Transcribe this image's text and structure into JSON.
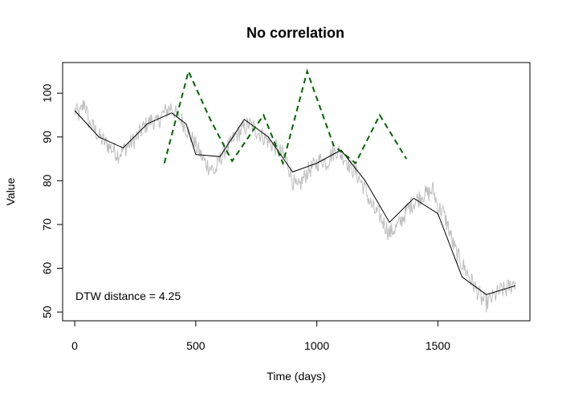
{
  "chart_data": {
    "type": "line",
    "title": "No correlation",
    "xlabel": "Time (days)",
    "ylabel": "Value",
    "xlim": [
      -50,
      1880
    ],
    "ylim": [
      48,
      107
    ],
    "xticks": [
      0,
      500,
      1000,
      1500
    ],
    "yticks": [
      50,
      60,
      70,
      80,
      90,
      100
    ],
    "grid": false,
    "annotation": "DTW distance = 4.25",
    "series": [
      {
        "style": "noisy",
        "color": "#bebebe",
        "x": [
          0,
          20,
          40,
          60,
          80,
          100,
          120,
          140,
          160,
          180,
          200,
          220,
          240,
          260,
          280,
          300,
          320,
          340,
          360,
          380,
          400,
          420,
          440,
          460,
          480,
          500,
          520,
          540,
          560,
          580,
          600,
          620,
          640,
          660,
          680,
          700,
          720,
          740,
          760,
          780,
          800,
          820,
          840,
          860,
          880,
          900,
          920,
          940,
          960,
          980,
          1000,
          1020,
          1040,
          1060,
          1080,
          1100,
          1120,
          1140,
          1160,
          1180,
          1200,
          1220,
          1240,
          1260,
          1280,
          1300,
          1320,
          1340,
          1360,
          1380,
          1400,
          1420,
          1440,
          1460,
          1480,
          1500,
          1520,
          1540,
          1560,
          1580,
          1600,
          1620,
          1640,
          1660,
          1680,
          1700,
          1720,
          1740,
          1760,
          1780,
          1800,
          1820
        ],
        "y": [
          96,
          95,
          98,
          93,
          92,
          90,
          89,
          88,
          87,
          86,
          87,
          88,
          89,
          90,
          92,
          93,
          94,
          93,
          95,
          96,
          97,
          95,
          94,
          92,
          90,
          88,
          86,
          84,
          83,
          82,
          85,
          87,
          88,
          90,
          91,
          92,
          93,
          92,
          91,
          90,
          89,
          88,
          87,
          86,
          84,
          80,
          78,
          80,
          82,
          83,
          84,
          85,
          84,
          86,
          87,
          86,
          85,
          83,
          82,
          80,
          78,
          75,
          73,
          72,
          70,
          68,
          69,
          70,
          72,
          74,
          75,
          76,
          77,
          77,
          78,
          74,
          73,
          70,
          66,
          63,
          61,
          59,
          57,
          55,
          53,
          52,
          53,
          54,
          55,
          55,
          56,
          57
        ]
      },
      {
        "style": "smooth",
        "color": "#000000",
        "x": [
          0,
          50,
          100,
          200,
          300,
          400,
          460,
          500,
          600,
          700,
          800,
          900,
          1000,
          1100,
          1200,
          1300,
          1400,
          1500,
          1600,
          1700,
          1820
        ],
        "y": [
          96,
          93,
          90,
          87.5,
          93,
          95.5,
          93,
          86,
          85.5,
          94,
          90,
          82,
          84,
          87,
          80,
          70.5,
          76,
          72.5,
          58,
          54,
          56
        ]
      },
      {
        "style": "dashed",
        "color": "#006400",
        "x": [
          370,
          470,
          560,
          650,
          780,
          860,
          960,
          1070,
          1160,
          1260,
          1370
        ],
        "y": [
          84,
          105,
          94,
          84.5,
          95,
          84,
          105,
          88,
          84,
          95,
          85
        ]
      }
    ]
  }
}
